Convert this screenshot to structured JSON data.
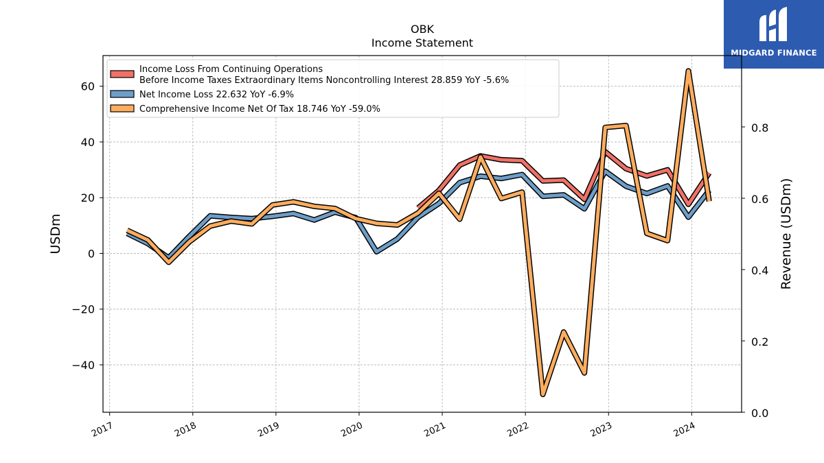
{
  "brand": {
    "name": "MIDGARD FINANCE",
    "bg_color": "#2d5bb0",
    "logo_icon": "midgard-m-icon"
  },
  "chart_data": {
    "type": "line",
    "title": "OBK",
    "subtitle": "Income Statement",
    "ylabel": "USDm",
    "ylabel_right": "Revenue (USDm)",
    "ylim": [
      -57,
      71
    ],
    "ylim_right": [
      0,
      1.0
    ],
    "yticks": [
      -40,
      -20,
      0,
      20,
      40,
      60
    ],
    "yticks_labels": [
      "−40",
      "−20",
      "0",
      "20",
      "40",
      "60"
    ],
    "yticks_right": [
      0.0,
      0.2,
      0.4,
      0.6,
      0.8
    ],
    "yticks_right_labels": [
      "0.0",
      "0.2",
      "0.4",
      "0.6",
      "0.8"
    ],
    "xlim": [
      2016.92,
      2024.6
    ],
    "xticks": [
      2017,
      2018,
      2019,
      2020,
      2021,
      2022,
      2023,
      2024
    ],
    "xticks_labels": [
      "2017",
      "2018",
      "2019",
      "2020",
      "2021",
      "2022",
      "2023",
      "2024"
    ],
    "grid": true,
    "legend_position": "upper-left",
    "series": [
      {
        "name": "Income Loss From Continuing Operations",
        "name_line2": "Before Income Taxes Extraordinary Items Noncontrolling Interest  28.859 YoY -5.6%",
        "color": "#f07167",
        "x": [
          2020.71,
          2020.96,
          2021.21,
          2021.46,
          2021.71,
          2021.96,
          2022.21,
          2022.46,
          2022.71,
          2022.96,
          2023.21,
          2023.46,
          2023.71,
          2023.96,
          2024.21
        ],
        "values": [
          16.3,
          22.6,
          31.7,
          35.0,
          33.6,
          33.3,
          26.0,
          26.3,
          19.4,
          36.5,
          30.4,
          27.8,
          30.0,
          17.6,
          28.9
        ]
      },
      {
        "name": "Net Income Loss  22.632 YoY -6.9%",
        "color": "#6d9ec8",
        "x": [
          2017.21,
          2017.46,
          2017.71,
          2017.96,
          2018.21,
          2018.46,
          2018.71,
          2018.96,
          2019.21,
          2019.46,
          2019.71,
          2019.96,
          2020.21,
          2020.46,
          2020.71,
          2020.96,
          2021.21,
          2021.46,
          2021.71,
          2021.96,
          2022.21,
          2022.46,
          2022.71,
          2022.96,
          2023.21,
          2023.46,
          2023.71,
          2023.96,
          2024.21
        ],
        "values": [
          7.2,
          3.5,
          -1.6,
          6.2,
          13.5,
          12.9,
          12.5,
          13.3,
          14.3,
          12.0,
          14.8,
          12.8,
          0.6,
          5.2,
          13.0,
          17.9,
          25.4,
          27.7,
          26.9,
          28.3,
          20.5,
          21.0,
          16.0,
          29.5,
          24.1,
          21.5,
          24.2,
          13.0,
          22.6
        ]
      },
      {
        "name": "Comprehensive Income Net Of Tax  18.746 YoY -59.0%",
        "color": "#fdad5f",
        "x": [
          2017.21,
          2017.46,
          2017.71,
          2017.96,
          2018.21,
          2018.46,
          2018.71,
          2018.96,
          2019.21,
          2019.46,
          2019.71,
          2019.96,
          2020.21,
          2020.46,
          2020.71,
          2020.96,
          2021.21,
          2021.46,
          2021.71,
          2021.96,
          2022.21,
          2022.46,
          2022.71,
          2022.96,
          2023.21,
          2023.46,
          2023.71,
          2023.96,
          2024.21
        ],
        "values": [
          8.3,
          4.8,
          -3.2,
          4.2,
          9.8,
          11.6,
          10.6,
          17.4,
          18.5,
          16.9,
          16.1,
          12.5,
          10.8,
          10.2,
          14.5,
          21.6,
          12.3,
          34.6,
          19.7,
          22.0,
          -50.6,
          -28.2,
          -42.9,
          45.2,
          45.9,
          7.2,
          4.6,
          65.5,
          18.7
        ]
      }
    ]
  }
}
